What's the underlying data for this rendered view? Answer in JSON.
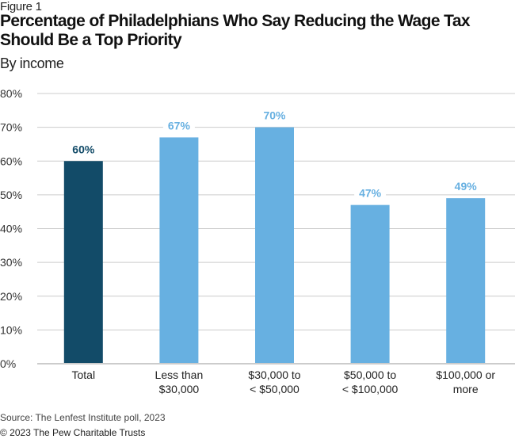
{
  "figure_label": "Figure 1",
  "title": "Percentage of Philadelphians Who Say Reducing the Wage Tax Should Be a Top Priority",
  "subtitle": "By income",
  "source": "Source: The Lenfest Institute poll, 2023",
  "copyright": "© 2023 The Pew Charitable Trusts",
  "colors": {
    "total": "#124b68",
    "group": "#67b0e1",
    "grid": "#cccccc"
  },
  "chart_data": {
    "type": "bar",
    "title": "Percentage of Philadelphians Who Say Reducing the Wage Tax Should Be a Top Priority",
    "subtitle": "By income",
    "categories": [
      [
        "Total"
      ],
      [
        "Less than",
        "$30,000"
      ],
      [
        "$30,000 to",
        "< $50,000"
      ],
      [
        "$50,000 to",
        "< $100,000"
      ],
      [
        "$100,000 or",
        "more"
      ]
    ],
    "values": [
      60,
      67,
      70,
      47,
      49
    ],
    "data_labels": [
      "60%",
      "67%",
      "70%",
      "47%",
      "49%"
    ],
    "ylim": [
      0,
      80
    ],
    "yticks": [
      0,
      10,
      20,
      30,
      40,
      50,
      60,
      70,
      80
    ],
    "ytick_labels": [
      "0%",
      "10%",
      "20%",
      "30%",
      "40%",
      "50%",
      "60%",
      "70%",
      "80%"
    ],
    "xlabel": "",
    "ylabel": "",
    "grid": true,
    "legend": "none"
  }
}
